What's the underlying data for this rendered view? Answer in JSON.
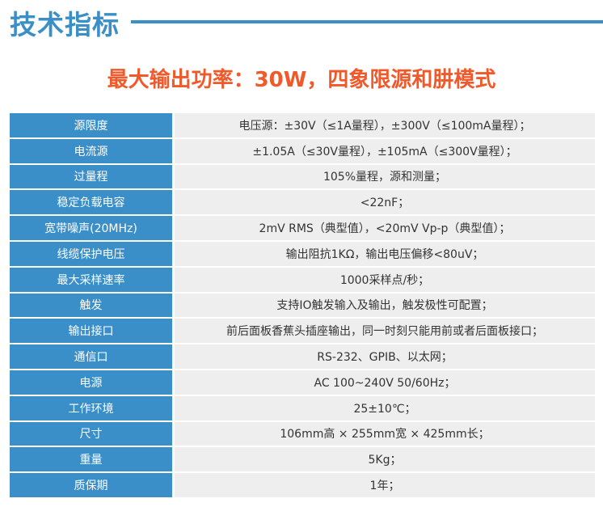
{
  "header": {
    "title": "技术指标",
    "subtitle": "最大输出功率：30W，四象限源和肼模式"
  },
  "colors": {
    "accent_blue": "#3b8fc9",
    "highlight_orange": "#f0592a",
    "value_bg": "#eeeeee"
  },
  "specs": [
    {
      "label": "源限度",
      "value": "电压源：±30V（≤1A量程），±300V（≤100mA量程）；"
    },
    {
      "label": "电流源",
      "value": "±1.05A（≤30V量程），±105mA（≤300V量程）；"
    },
    {
      "label": "过量程",
      "value": "105%量程，源和测量；"
    },
    {
      "label": "稳定负载电容",
      "value": "<22nF；"
    },
    {
      "label": "宽带噪声(20MHz)",
      "value": "2mV RMS（典型值），<20mV Vp-p（典型值）；"
    },
    {
      "label": "线缆保护电压",
      "value": "输出阻抗1KΩ，输出电压偏移<80uV；"
    },
    {
      "label": "最大采样速率",
      "value": "1000采样点/秒；"
    },
    {
      "label": "触发",
      "value": "支持IO触发输入及输出，触发极性可配置；"
    },
    {
      "label": "输出接口",
      "value": "前后面板香蕉头插座输出，同一时刻只能用前或者后面板接口；"
    },
    {
      "label": "通信口",
      "value": "RS-232、GPIB、以太网；"
    },
    {
      "label": "电源",
      "value": "AC 100~240V 50/60Hz；"
    },
    {
      "label": "工作环境",
      "value": "25±10℃；"
    },
    {
      "label": "尺寸",
      "value": "106mm高 × 255mm宽 × 425mm长；"
    },
    {
      "label": "重量",
      "value": "5Kg；"
    },
    {
      "label": "质保期",
      "value": "1年；"
    }
  ]
}
